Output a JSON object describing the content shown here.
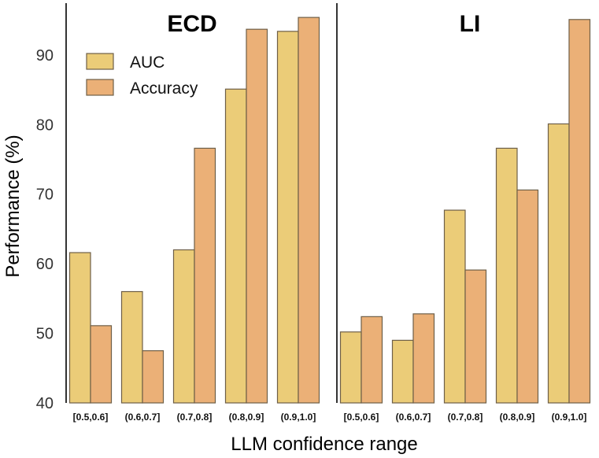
{
  "chart_data": {
    "type": "bar",
    "ylabel": "Performance (%)",
    "xlabel": "LLM confidence range",
    "ylim": [
      40,
      97
    ],
    "yticks": [
      40,
      50,
      60,
      70,
      80,
      90
    ],
    "grid": false,
    "legend": {
      "placement": "top-left",
      "entries": [
        "AUC",
        "Accuracy"
      ]
    },
    "colors": {
      "AUC": "#ebcc78",
      "Accuracy": "#ebb077",
      "edge": "#6e5f48",
      "axis": "#000000"
    },
    "categories": [
      "[0.5,0.6]",
      "(0.6,0.7]",
      "(0.7,0.8]",
      "(0.8,0.9]",
      "(0.9,1.0]"
    ],
    "panels": [
      {
        "title": "ECD",
        "series": [
          {
            "name": "AUC",
            "values": [
              61.6,
              56.0,
              62.0,
              85.1,
              93.4
            ]
          },
          {
            "name": "Accuracy",
            "values": [
              51.1,
              47.5,
              76.6,
              93.7,
              95.4
            ]
          }
        ]
      },
      {
        "title": "LI",
        "series": [
          {
            "name": "AUC",
            "values": [
              50.2,
              49.0,
              67.7,
              76.6,
              80.1
            ]
          },
          {
            "name": "Accuracy",
            "values": [
              52.4,
              52.8,
              59.1,
              70.6,
              95.1
            ]
          }
        ]
      }
    ]
  }
}
